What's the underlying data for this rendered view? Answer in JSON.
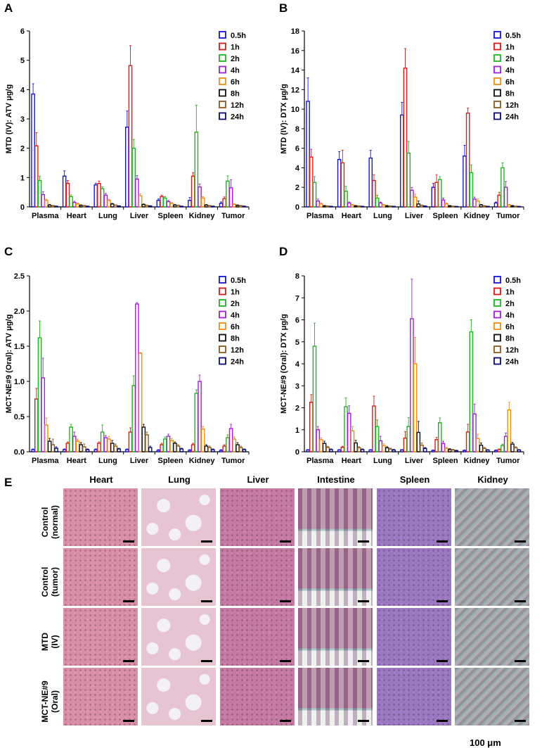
{
  "panel_letters": [
    "A",
    "B",
    "C",
    "D",
    "E"
  ],
  "series_colors": [
    "#1414d8",
    "#e01818",
    "#20b420",
    "#a020d8",
    "#f08c14",
    "#101010",
    "#8a5a1e",
    "#0a0a72"
  ],
  "chart_data": [
    {
      "type": "bar",
      "panel": "A",
      "ylabel": "MTD (IV): ATV μg/g",
      "ylim": [
        0,
        6
      ],
      "yticks": [
        "0",
        "1",
        "2",
        "3",
        "4",
        "5",
        "6"
      ],
      "categories": [
        "Plasma",
        "Heart",
        "Lung",
        "Liver",
        "Spleen",
        "Kidney",
        "Tumor"
      ],
      "series": [
        {
          "name": "0.5h",
          "values": [
            3.85,
            1.05,
            0.75,
            2.72,
            0.22,
            0.22,
            0.12
          ],
          "errors": [
            0.35,
            0.18,
            0.06,
            0.55,
            0.05,
            0.1,
            0.05
          ]
        },
        {
          "name": "1h",
          "values": [
            2.08,
            0.8,
            0.8,
            4.82,
            0.35,
            1.05,
            0.28
          ],
          "errors": [
            0.45,
            0.1,
            0.08,
            0.68,
            0.05,
            0.12,
            0.06
          ]
        },
        {
          "name": "2h",
          "values": [
            0.9,
            0.35,
            0.62,
            2.0,
            0.3,
            2.55,
            0.88
          ],
          "errors": [
            0.15,
            0.06,
            0.06,
            0.3,
            0.05,
            0.92,
            0.18
          ]
        },
        {
          "name": "4h",
          "values": [
            0.42,
            0.15,
            0.4,
            0.95,
            0.18,
            0.68,
            0.65
          ],
          "errors": [
            0.1,
            0.04,
            0.06,
            0.12,
            0.04,
            0.1,
            0.28
          ]
        },
        {
          "name": "6h",
          "values": [
            0.22,
            0.1,
            0.22,
            0.38,
            0.12,
            0.3,
            0.08
          ],
          "errors": [
            0.04,
            0.03,
            0.04,
            0.06,
            0.03,
            0.05,
            0.03
          ]
        },
        {
          "name": "8h",
          "values": [
            0.06,
            0.05,
            0.1,
            0.08,
            0.06,
            0.06,
            0.05
          ],
          "errors": [
            0.02,
            0.02,
            0.02,
            0.02,
            0.02,
            0.02,
            0.02
          ]
        },
        {
          "name": "12h",
          "values": [
            0.04,
            0.04,
            0.06,
            0.05,
            0.05,
            0.04,
            0.04
          ],
          "errors": [
            0.01,
            0.01,
            0.01,
            0.01,
            0.01,
            0.01,
            0.01
          ]
        },
        {
          "name": "24h",
          "values": [
            0.02,
            0.02,
            0.03,
            0.03,
            0.02,
            0.02,
            0.02
          ],
          "errors": [
            0.01,
            0.01,
            0.01,
            0.01,
            0.01,
            0.01,
            0.01
          ]
        }
      ]
    },
    {
      "type": "bar",
      "panel": "B",
      "ylabel": "MTD (IV): DTX μg/g",
      "ylim": [
        0,
        18
      ],
      "yticks": [
        "0",
        "2",
        "4",
        "6",
        "8",
        "10",
        "12",
        "14",
        "16",
        "18"
      ],
      "categories": [
        "Plasma",
        "Heart",
        "Lung",
        "Liver",
        "Spleen",
        "Kidney",
        "Tumor"
      ],
      "series": [
        {
          "name": "0.5h",
          "values": [
            10.8,
            4.85,
            5.0,
            9.4,
            2.0,
            5.2,
            0.4
          ],
          "errors": [
            2.4,
            0.8,
            0.8,
            1.3,
            0.4,
            1.1,
            0.1
          ]
        },
        {
          "name": "1h",
          "values": [
            5.1,
            4.5,
            2.7,
            14.2,
            2.5,
            9.6,
            1.2
          ],
          "errors": [
            0.8,
            1.3,
            0.6,
            2.0,
            0.8,
            0.5,
            0.3
          ]
        },
        {
          "name": "2h",
          "values": [
            2.5,
            1.6,
            0.9,
            5.5,
            2.8,
            3.5,
            4.0
          ],
          "errors": [
            0.6,
            0.5,
            0.3,
            1.2,
            0.3,
            0.8,
            0.5
          ]
        },
        {
          "name": "4h",
          "values": [
            0.6,
            0.4,
            0.4,
            1.7,
            0.7,
            0.8,
            2.0
          ],
          "errors": [
            0.2,
            0.1,
            0.1,
            0.3,
            0.2,
            0.2,
            0.6
          ]
        },
        {
          "name": "6h",
          "values": [
            0.3,
            0.2,
            0.2,
            1.0,
            0.3,
            0.6,
            0.2
          ],
          "errors": [
            0.1,
            0.05,
            0.05,
            0.3,
            0.1,
            0.2,
            0.05
          ]
        },
        {
          "name": "8h",
          "values": [
            0.1,
            0.1,
            0.1,
            0.3,
            0.1,
            0.2,
            0.1
          ],
          "errors": [
            0.05,
            0.05,
            0.05,
            0.3,
            0.05,
            0.05,
            0.05
          ]
        },
        {
          "name": "12h",
          "values": [
            0.08,
            0.08,
            0.08,
            0.15,
            0.06,
            0.1,
            0.06
          ],
          "errors": [
            0.03,
            0.03,
            0.03,
            0.05,
            0.03,
            0.03,
            0.03
          ]
        },
        {
          "name": "24h",
          "values": [
            0.05,
            0.05,
            0.05,
            0.08,
            0.04,
            0.05,
            0.04
          ],
          "errors": [
            0.02,
            0.02,
            0.02,
            0.03,
            0.02,
            0.02,
            0.02
          ]
        }
      ]
    },
    {
      "type": "bar",
      "panel": "C",
      "ylabel": "MCT-NE#9 (Oral): ATV μg/g",
      "ylim": [
        0,
        2.5
      ],
      "yticks": [
        "0.0",
        "0.5",
        "1.0",
        "1.5",
        "2.0",
        "2.5"
      ],
      "categories": [
        "Plasma",
        "Heart",
        "Lung",
        "Liver",
        "Spleen",
        "Kidney",
        "Tumor"
      ],
      "series": [
        {
          "name": "0.5h",
          "values": [
            0.03,
            0.03,
            0.03,
            0.03,
            0.02,
            0.02,
            0.02
          ],
          "errors": [
            0.01,
            0.01,
            0.01,
            0.01,
            0.01,
            0.01,
            0.01
          ]
        },
        {
          "name": "1h",
          "values": [
            0.75,
            0.12,
            0.12,
            0.28,
            0.1,
            0.1,
            0.08
          ],
          "errors": [
            0.15,
            0.02,
            0.02,
            0.06,
            0.02,
            0.02,
            0.02
          ]
        },
        {
          "name": "2h",
          "values": [
            1.62,
            0.35,
            0.28,
            0.94,
            0.18,
            0.83,
            0.2
          ],
          "errors": [
            0.24,
            0.04,
            0.1,
            0.14,
            0.03,
            0.05,
            0.04
          ]
        },
        {
          "name": "4h",
          "values": [
            1.05,
            0.22,
            0.2,
            2.1,
            0.22,
            1.0,
            0.33
          ],
          "errors": [
            0.28,
            0.06,
            0.03,
            0.02,
            0.03,
            0.09,
            0.06
          ]
        },
        {
          "name": "6h",
          "values": [
            0.38,
            0.15,
            0.18,
            1.4,
            0.16,
            0.32,
            0.18
          ],
          "errors": [
            0.1,
            0.03,
            0.04,
            0.01,
            0.03,
            0.04,
            0.03
          ]
        },
        {
          "name": "8h",
          "values": [
            0.15,
            0.1,
            0.12,
            0.35,
            0.12,
            0.08,
            0.1
          ],
          "errors": [
            0.04,
            0.03,
            0.04,
            0.04,
            0.02,
            0.02,
            0.03
          ]
        },
        {
          "name": "12h",
          "values": [
            0.1,
            0.07,
            0.08,
            0.24,
            0.08,
            0.06,
            0.06
          ],
          "errors": [
            0.08,
            0.04,
            0.03,
            0.04,
            0.02,
            0.02,
            0.02
          ]
        },
        {
          "name": "24h",
          "values": [
            0.05,
            0.03,
            0.04,
            0.06,
            0.04,
            0.03,
            0.03
          ],
          "errors": [
            0.02,
            0.01,
            0.01,
            0.02,
            0.01,
            0.01,
            0.01
          ]
        }
      ]
    },
    {
      "type": "bar",
      "panel": "D",
      "ylabel": "MCT-NE#9 (Oral): DTX μg/g",
      "ylim": [
        0,
        8
      ],
      "yticks": [
        "0",
        "1",
        "2",
        "3",
        "4",
        "5",
        "6",
        "7",
        "8"
      ],
      "categories": [
        "Plasma",
        "Heart",
        "Lung",
        "Liver",
        "Spleen",
        "Kidney",
        "Tumor"
      ],
      "series": [
        {
          "name": "0.5h",
          "values": [
            0.08,
            0.08,
            0.08,
            0.08,
            0.06,
            0.06,
            0.06
          ],
          "errors": [
            0.02,
            0.02,
            0.02,
            0.02,
            0.02,
            0.02,
            0.02
          ]
        },
        {
          "name": "1h",
          "values": [
            2.25,
            0.2,
            2.08,
            0.62,
            0.55,
            0.9,
            0.1
          ],
          "errors": [
            0.35,
            0.05,
            0.45,
            0.3,
            0.1,
            0.35,
            0.03
          ]
        },
        {
          "name": "2h",
          "values": [
            4.8,
            2.05,
            1.15,
            1.15,
            1.32,
            5.45,
            0.28
          ],
          "errors": [
            1.05,
            0.4,
            0.3,
            0.4,
            0.22,
            0.55,
            0.06
          ]
        },
        {
          "name": "4h",
          "values": [
            1.0,
            1.75,
            0.5,
            6.05,
            0.38,
            1.72,
            0.7
          ],
          "errors": [
            0.15,
            0.35,
            0.2,
            1.8,
            0.1,
            0.45,
            0.15
          ]
        },
        {
          "name": "6h",
          "values": [
            0.55,
            0.95,
            0.28,
            4.0,
            0.15,
            0.6,
            1.9
          ],
          "errors": [
            0.08,
            0.2,
            0.08,
            1.2,
            0.05,
            0.2,
            0.35
          ]
        },
        {
          "name": "8h",
          "values": [
            0.38,
            0.4,
            0.18,
            0.88,
            0.1,
            0.3,
            0.35
          ],
          "errors": [
            0.1,
            0.12,
            0.05,
            0.5,
            0.04,
            0.1,
            0.08
          ]
        },
        {
          "name": "12h",
          "values": [
            0.2,
            0.18,
            0.12,
            0.3,
            0.08,
            0.15,
            0.18
          ],
          "errors": [
            0.05,
            0.05,
            0.04,
            0.1,
            0.03,
            0.05,
            0.05
          ]
        },
        {
          "name": "24h",
          "values": [
            0.1,
            0.1,
            0.08,
            0.15,
            0.05,
            0.08,
            0.08
          ],
          "errors": [
            0.03,
            0.03,
            0.03,
            0.04,
            0.02,
            0.02,
            0.02
          ]
        }
      ]
    }
  ],
  "histology": {
    "columns": [
      "Heart",
      "Lung",
      "Liver",
      "Intestine",
      "Spleen",
      "Kidney"
    ],
    "rows": [
      {
        "line1": "Control",
        "line2": "(normal)"
      },
      {
        "line1": "Control",
        "line2": "(tumor)"
      },
      {
        "line1": "MTD",
        "line2": "(IV)"
      },
      {
        "line1": "MCT-NE#9",
        "line2": "(Oral)"
      }
    ],
    "scale_text": "100 μm",
    "tile_colors": [
      "#d88ea6",
      "#e7c4d2",
      "#c57aa3",
      "#bb88a6",
      "#9b78c1",
      "#b1acb6"
    ]
  }
}
